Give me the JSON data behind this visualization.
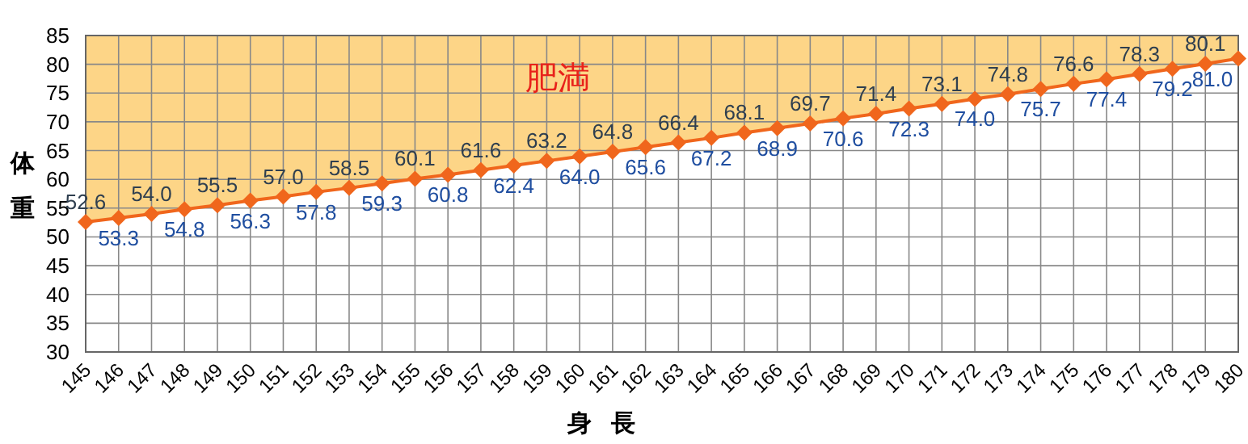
{
  "chart_data": {
    "type": "line",
    "xlabel": "身長",
    "ylabel": "体重",
    "annotations": [
      "肥満"
    ],
    "x": [
      145,
      146,
      147,
      148,
      149,
      150,
      151,
      152,
      153,
      154,
      155,
      156,
      157,
      158,
      159,
      160,
      161,
      162,
      163,
      164,
      165,
      166,
      167,
      168,
      169,
      170,
      171,
      172,
      173,
      174,
      175,
      176,
      177,
      178,
      179,
      180
    ],
    "series": [
      {
        "color": "#f0661c",
        "values": [
          52.6,
          53.3,
          54.0,
          54.8,
          55.5,
          56.3,
          57.0,
          57.8,
          58.5,
          59.3,
          60.1,
          60.8,
          61.6,
          62.4,
          63.2,
          64.0,
          64.8,
          65.6,
          66.4,
          67.2,
          68.1,
          68.9,
          69.7,
          70.6,
          71.4,
          72.3,
          73.1,
          74.0,
          74.8,
          75.7,
          76.6,
          77.4,
          78.3,
          79.2,
          80.1,
          81.0
        ],
        "value_labels": [
          "52.6",
          "53.3",
          "54.0",
          "54.8",
          "55.5",
          "56.3",
          "57.0",
          "57.8",
          "58.5",
          "59.3",
          "60.1",
          "60.8",
          "61.6",
          "62.4",
          "63.2",
          "64.0",
          "64.8",
          "65.6",
          "66.4",
          "67.2",
          "68.1",
          "68.9",
          "69.7",
          "70.6",
          "71.4",
          "72.3",
          "73.1",
          "74.0",
          "74.8",
          "75.7",
          "76.6",
          "77.4",
          "78.3",
          "79.2",
          "80.1",
          "81.0"
        ],
        "lower": [
          52.6,
          53.3,
          54.0,
          54.8,
          55.5,
          56.3,
          57.0,
          57.8,
          58.5,
          59.3,
          60.1,
          60.8,
          61.6,
          62.4,
          63.2,
          64.0,
          64.8,
          65.6,
          66.4,
          67.2,
          68.1,
          68.9,
          69.7,
          70.6,
          71.4,
          72.3,
          73.1,
          74.0,
          74.8,
          75.7,
          76.6,
          77.4,
          78.3,
          79.2,
          80.1,
          81.0
        ],
        "upper": [
          85,
          85,
          85,
          85,
          85,
          85,
          85,
          85,
          85,
          85,
          85,
          85,
          85,
          85,
          85,
          85,
          85,
          85,
          85,
          85,
          85,
          85,
          85,
          85,
          85,
          85,
          85,
          85,
          85,
          85,
          85,
          85,
          85,
          85,
          85,
          85
        ]
      }
    ],
    "xlim": [
      145,
      180
    ],
    "ylim": [
      30,
      85
    ],
    "xticks": [
      145,
      146,
      147,
      148,
      149,
      150,
      151,
      152,
      153,
      154,
      155,
      156,
      157,
      158,
      159,
      160,
      161,
      162,
      163,
      164,
      165,
      166,
      167,
      168,
      169,
      170,
      171,
      172,
      173,
      174,
      175,
      176,
      177,
      178,
      179,
      180
    ],
    "yticks": [
      30,
      35,
      40,
      45,
      50,
      55,
      60,
      65,
      70,
      75,
      80,
      85
    ],
    "grid": true,
    "marker": "diamond",
    "line_style": "solid"
  }
}
